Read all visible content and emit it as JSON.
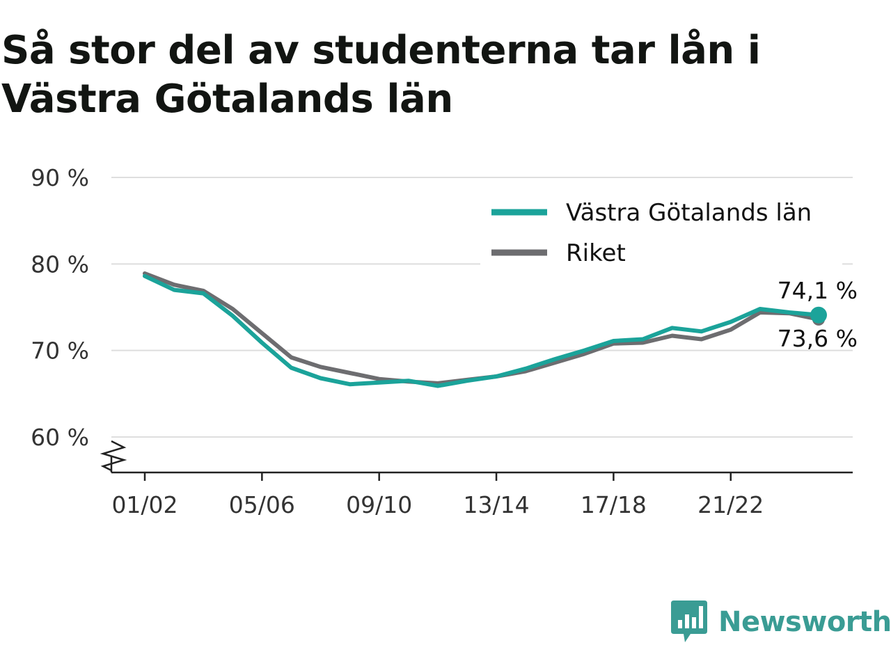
{
  "chart_data": {
    "type": "line",
    "title": "Så stor del av studenterna tar lån i Västra Götalands län",
    "xlabel": "",
    "ylabel": "",
    "ylim": [
      56,
      90
    ],
    "yticks": [
      60,
      70,
      80,
      90
    ],
    "ytick_labels": [
      "60 %",
      "70 %",
      "80 %",
      "90 %"
    ],
    "categories": [
      "01/02",
      "02/03",
      "03/04",
      "04/05",
      "05/06",
      "06/07",
      "07/08",
      "08/09",
      "09/10",
      "10/11",
      "11/12",
      "12/13",
      "13/14",
      "14/15",
      "15/16",
      "16/17",
      "17/18",
      "18/19",
      "19/20",
      "20/21",
      "21/22",
      "22/23",
      "23/24",
      "24/25"
    ],
    "xtick_labels": [
      "01/02",
      "05/06",
      "09/10",
      "13/14",
      "17/18",
      "21/22"
    ],
    "grid": true,
    "axis_break": true,
    "legend_position": "top-right",
    "series": [
      {
        "name": "Västra Götalands län",
        "color": "#1ba39a",
        "values": [
          78.6,
          77.0,
          76.6,
          74.0,
          70.9,
          68.0,
          66.8,
          66.1,
          66.3,
          66.5,
          65.9,
          66.5,
          67.0,
          67.9,
          69.0,
          70.0,
          71.1,
          71.3,
          72.6,
          72.2,
          73.3,
          74.8,
          74.4,
          74.1
        ],
        "end_label": "74,1 %"
      },
      {
        "name": "Riket",
        "color": "#6d6d70",
        "values": [
          78.9,
          77.6,
          76.9,
          74.8,
          72.0,
          69.2,
          68.1,
          67.4,
          66.7,
          66.4,
          66.2,
          66.6,
          67.0,
          67.6,
          68.6,
          69.6,
          70.8,
          70.9,
          71.7,
          71.3,
          72.4,
          74.4,
          74.3,
          73.6
        ],
        "end_label": "73,6 %"
      }
    ]
  },
  "brand": {
    "name": "Newsworthy",
    "logo_color": "#3a9c94"
  }
}
